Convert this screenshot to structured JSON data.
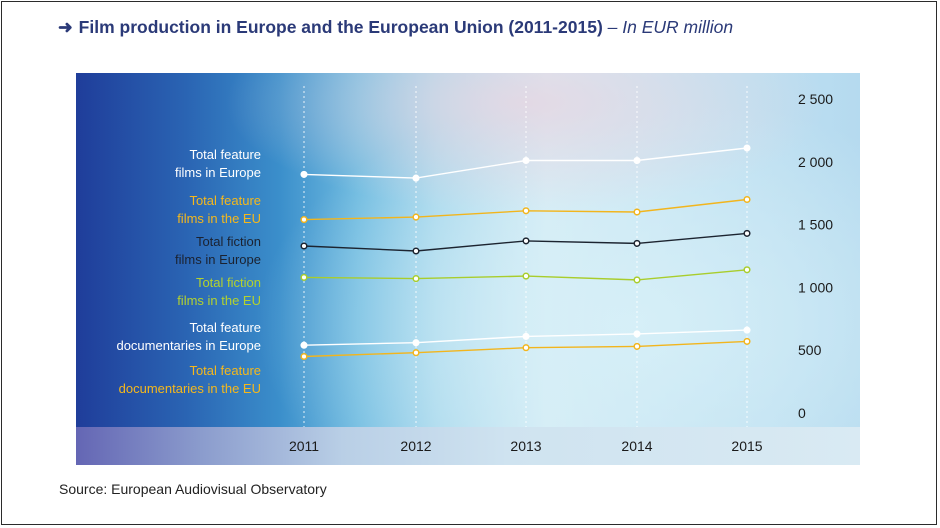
{
  "title": {
    "arrow": "➜",
    "main": "Film production in Europe and the European Union (2011-2015)",
    "sub": "– In EUR million"
  },
  "source": "Source: European Audiovisual Observatory",
  "chart_data": {
    "type": "line",
    "title": "Film production in Europe and the European Union (2011-2015)",
    "subtitle": "In EUR million",
    "xlabel": "",
    "ylabel": "",
    "x": [
      "2011",
      "2012",
      "2013",
      "2014",
      "2015"
    ],
    "ylim": [
      0,
      2500
    ],
    "yticks": [
      0,
      500,
      1000,
      1500,
      2000,
      2500
    ],
    "ytick_labels": [
      "0",
      "500",
      "1 000",
      "1 500",
      "2 000",
      "2 500"
    ],
    "y_axis_side": "right",
    "legend": "left, labels aligned with series",
    "series": [
      {
        "name": "Total feature films in Europe",
        "label_lines": [
          "Total feature",
          "films in Europe"
        ],
        "color": "#ffffff",
        "label_color": "#ffffff",
        "values": [
          1900,
          1870,
          2010,
          2010,
          2110
        ]
      },
      {
        "name": "Total feature films in the EU",
        "label_lines": [
          "Total feature",
          "films in the EU"
        ],
        "color": "#f2b51d",
        "label_color": "#f5b81c",
        "values": [
          1540,
          1560,
          1610,
          1600,
          1700
        ]
      },
      {
        "name": "Total fiction films in Europe",
        "label_lines": [
          "Total fiction",
          "films in Europe"
        ],
        "color": "#1c2430",
        "label_color": "#1b2230",
        "values": [
          1330,
          1290,
          1370,
          1350,
          1430
        ]
      },
      {
        "name": "Total fiction films in the EU",
        "label_lines": [
          "Total fiction",
          "films in the EU"
        ],
        "color": "#a9cd2c",
        "label_color": "#b3d22e",
        "values": [
          1080,
          1070,
          1090,
          1060,
          1140
        ]
      },
      {
        "name": "Total feature documentaries in Europe",
        "label_lines": [
          "Total feature",
          "documentaries in Europe"
        ],
        "color": "#ffffff",
        "label_color": "#ffffff",
        "values": [
          540,
          560,
          610,
          630,
          660
        ]
      },
      {
        "name": "Total feature documentaries in the EU",
        "label_lines": [
          "Total feature",
          "documentaries in the EU"
        ],
        "color": "#f2b51d",
        "label_color": "#f5b81c",
        "values": [
          450,
          480,
          520,
          530,
          570
        ]
      }
    ],
    "grid": "vertical dotted lines at each year"
  }
}
